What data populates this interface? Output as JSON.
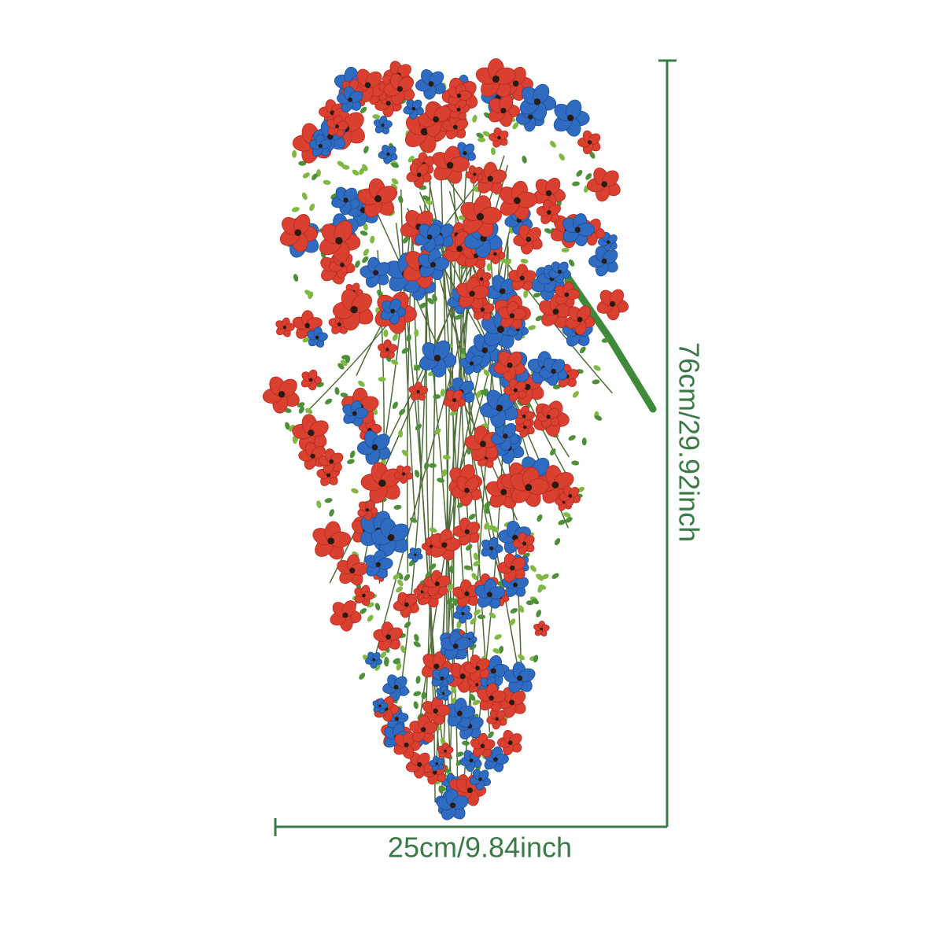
{
  "dimensions": {
    "height_label": "76cm/29.92inch",
    "width_label": "25cm/9.84inch"
  }
}
